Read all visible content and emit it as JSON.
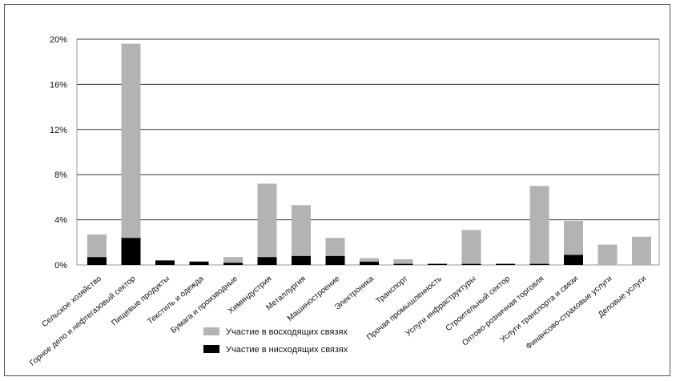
{
  "chart_data": {
    "type": "bar",
    "stacked": true,
    "title": "",
    "xlabel": "",
    "ylabel": "",
    "ylim": [
      0,
      20
    ],
    "y_ticks": [
      0,
      4,
      8,
      12,
      16,
      20
    ],
    "y_tick_labels": [
      "0%",
      "4%",
      "8%",
      "12%",
      "16%",
      "20%"
    ],
    "grid": true,
    "legend_position": "bottom-center",
    "categories": [
      "Сельское хозяйство",
      "Горное дело и нефтегазовый сектор",
      "Пищевые продукты",
      "Текстиль и одежда",
      "Бумага и производные",
      "Химиндустрия",
      "Металлургия",
      "Машиностроение",
      "Электроника",
      "Транспорт",
      "Прочая промышленность",
      "Услуги инфраструктуры",
      "Строительный сектор",
      "Оптово-розничная торговля",
      "Услуги транспорта и связи",
      "Финансово-страховые услуги",
      "Деловые услуги"
    ],
    "series": [
      {
        "name": "Участие в нисходящих связях",
        "color": "#000000",
        "values": [
          0.7,
          2.4,
          0.4,
          0.3,
          0.2,
          0.7,
          0.8,
          0.8,
          0.3,
          0.1,
          0.1,
          0.1,
          0.1,
          0.1,
          0.9,
          0.0,
          0.0
        ]
      },
      {
        "name": "Участие в восходящих связях",
        "color": "#b3b3b3",
        "values": [
          2.0,
          17.2,
          0.0,
          0.0,
          0.5,
          6.5,
          4.5,
          1.6,
          0.3,
          0.4,
          0.0,
          3.0,
          0.0,
          6.9,
          3.0,
          1.8,
          2.5
        ]
      }
    ],
    "legend": [
      {
        "name": "Участие в восходящих связях",
        "color": "#b3b3b3"
      },
      {
        "name": "Участие в нисходящих связях",
        "color": "#000000"
      }
    ]
  }
}
